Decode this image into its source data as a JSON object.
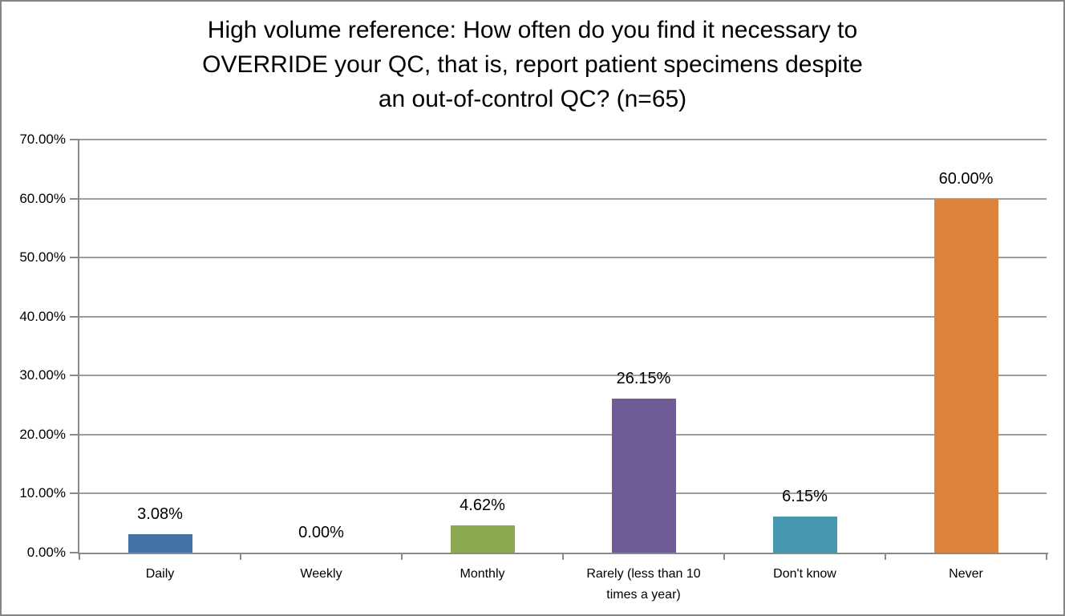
{
  "frame": {
    "background": "#FFFFFF",
    "border_color": "#858585"
  },
  "chart_data": {
    "type": "bar",
    "title": "High volume reference: How often do you find it necessary to OVERRIDE your QC, that is, report patient specimens despite an out-of-control QC? (n=65)",
    "title_lines": [
      "High volume reference: How often do you find it necessary to",
      "OVERRIDE your QC, that is, report patient specimens despite",
      "an out-of-control QC? (n=65)"
    ],
    "categories": [
      "Daily",
      "Weekly",
      "Monthly",
      "Rarely (less than 10 times a year)",
      "Don't know",
      "Never"
    ],
    "values": [
      3.08,
      0,
      4.62,
      26.15,
      6.15,
      60
    ],
    "value_labels": [
      "3.08%",
      "0.00%",
      "4.62%",
      "26.15%",
      "6.15%",
      "60.00%"
    ],
    "bar_colors": [
      "#4573A7",
      null,
      "#8BAA4F",
      "#6F5C96",
      "#4597AD",
      "#DC833E"
    ],
    "xlabel": "",
    "ylabel": "",
    "y_axis": {
      "min": 0,
      "max": 70,
      "step": 10,
      "tick_labels": [
        "0.00%",
        "10.00%",
        "20.00%",
        "30.00%",
        "40.00%",
        "50.00%",
        "60.00%",
        "70.00%"
      ]
    },
    "grid": true,
    "legend": "none",
    "colors": {
      "gridline": "#9E9E9E",
      "axis": "#898989",
      "text": "#000000"
    }
  }
}
